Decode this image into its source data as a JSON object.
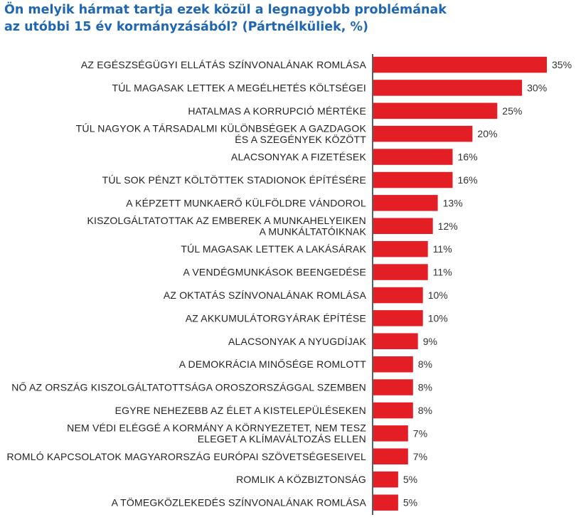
{
  "title": {
    "line1": "Ön melyik hármat tartja ezek közül a legnagyobb problémának",
    "line2": "az utóbbi 15 év kormányzásából? (Pártnélküliek, %)"
  },
  "colors": {
    "bar": "#e31e24",
    "axis": "#1a1a1a",
    "title": "#1f66b3"
  },
  "chart_data": {
    "type": "bar",
    "orientation": "horizontal",
    "title": "Ön melyik hármat tartja ezek közül a legnagyobb problémának az utóbbi 15 év kormányzásából? (Pártnélküliek, %)",
    "value_suffix": "%",
    "xlim": [
      0,
      35
    ],
    "grid": false,
    "categories": [
      [
        "AZ EGÉSZSÉGÜGYI ELLÁTÁS SZÍNVONALÁNAK ROMLÁSA"
      ],
      [
        "TÚL MAGASAK LETTEK A MEGÉLHETÉS KÖLTSÉGEI"
      ],
      [
        "HATALMAS A KORRUPCIÓ MÉRTÉKE"
      ],
      [
        "TÚL NAGYOK A TÁRSADALMI KÜLÖNBSÉGEK A GAZDAGOK",
        "ÉS A SZEGÉNYEK KÖZÖTT"
      ],
      [
        "ALACSONYAK A FIZETÉSEK"
      ],
      [
        "TÚL SOK PÉNZT KÖLTÖTTEK STADIONOK ÉPÍTÉSÉRE"
      ],
      [
        "A KÉPZETT MUNKAERŐ KÜLFÖLDRE VÁNDOROL"
      ],
      [
        "KISZOLGÁLTATOTTAK AZ EMBEREK A MUNKAHELYEIKEN",
        "A MUNKÁLTATÓIKNAK"
      ],
      [
        "TÚL MAGASAK LETTEK A LAKÁSÁRAK"
      ],
      [
        "A VENDÉGMUNKÁSOK BEENGEDÉSE"
      ],
      [
        "AZ OKTATÁS SZÍNVONALÁNAK ROMLÁSA"
      ],
      [
        "AZ AKKUMULÁTORGYÁRAK ÉPÍTÉSE"
      ],
      [
        "ALACSONYAK A NYUGDÍJAK"
      ],
      [
        "A DEMOKRÁCIA MINŐSÉGE ROMLOTT"
      ],
      [
        "NŐ AZ ORSZÁG KISZOLGÁLTATOTTSÁGA OROSZORSZÁGGAL SZEMBEN"
      ],
      [
        "EGYRE NEHEZEBB AZ ÉLET A KISTELEPÜLÉSEKEN"
      ],
      [
        "NEM VÉDI ELÉGGÉ A KORMÁNY A KÖRNYEZETET, NEM TESZ",
        "ELEGET A KLÍMAVÁLTOZÁS ELLEN"
      ],
      [
        "ROMLÓ KAPCSOLATOK MAGYARORSZÁG EURÓPAI SZÖVETSÉGESEIVEL"
      ],
      [
        "ROMLIK A KÖZBIZTONSÁG"
      ],
      [
        "A TÖMEGKÖZLEKEDÉS SZÍNVONALÁNAK ROMLÁSA"
      ]
    ],
    "values": [
      35,
      30,
      25,
      20,
      16,
      16,
      13,
      12,
      11,
      11,
      10,
      10,
      9,
      8,
      8,
      8,
      7,
      7,
      5,
      5
    ]
  }
}
